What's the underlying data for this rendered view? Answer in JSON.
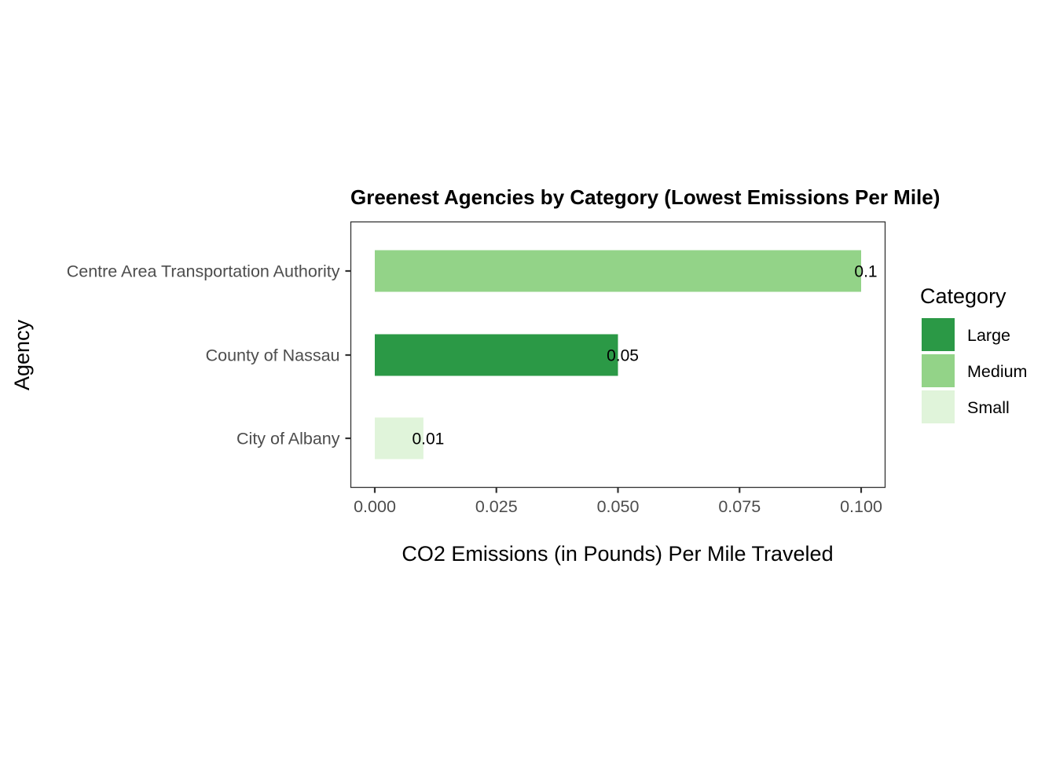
{
  "chart_data": {
    "type": "bar",
    "orientation": "horizontal",
    "title": "Greenest Agencies by Category (Lowest Emissions Per Mile)",
    "xlabel": "CO2 Emissions (in Pounds) Per Mile Traveled",
    "ylabel": "Agency",
    "xlim": [
      0,
      0.1
    ],
    "x_ticks": [
      "0.000",
      "0.025",
      "0.050",
      "0.075",
      "0.100"
    ],
    "grid": false,
    "legend_position": "right",
    "legend": {
      "title": "Category",
      "entries": [
        {
          "label": "Large",
          "color": "#2b9946"
        },
        {
          "label": "Medium",
          "color": "#93d388"
        },
        {
          "label": "Small",
          "color": "#e0f4da"
        }
      ]
    },
    "bars": [
      {
        "agency": "Centre Area Transportation Authority",
        "category": "Medium",
        "value": 0.1,
        "value_label": "0.1"
      },
      {
        "agency": "County of Nassau",
        "category": "Large",
        "value": 0.05,
        "value_label": "0.05"
      },
      {
        "agency": "City of Albany",
        "category": "Small",
        "value": 0.01,
        "value_label": "0.01"
      }
    ]
  }
}
